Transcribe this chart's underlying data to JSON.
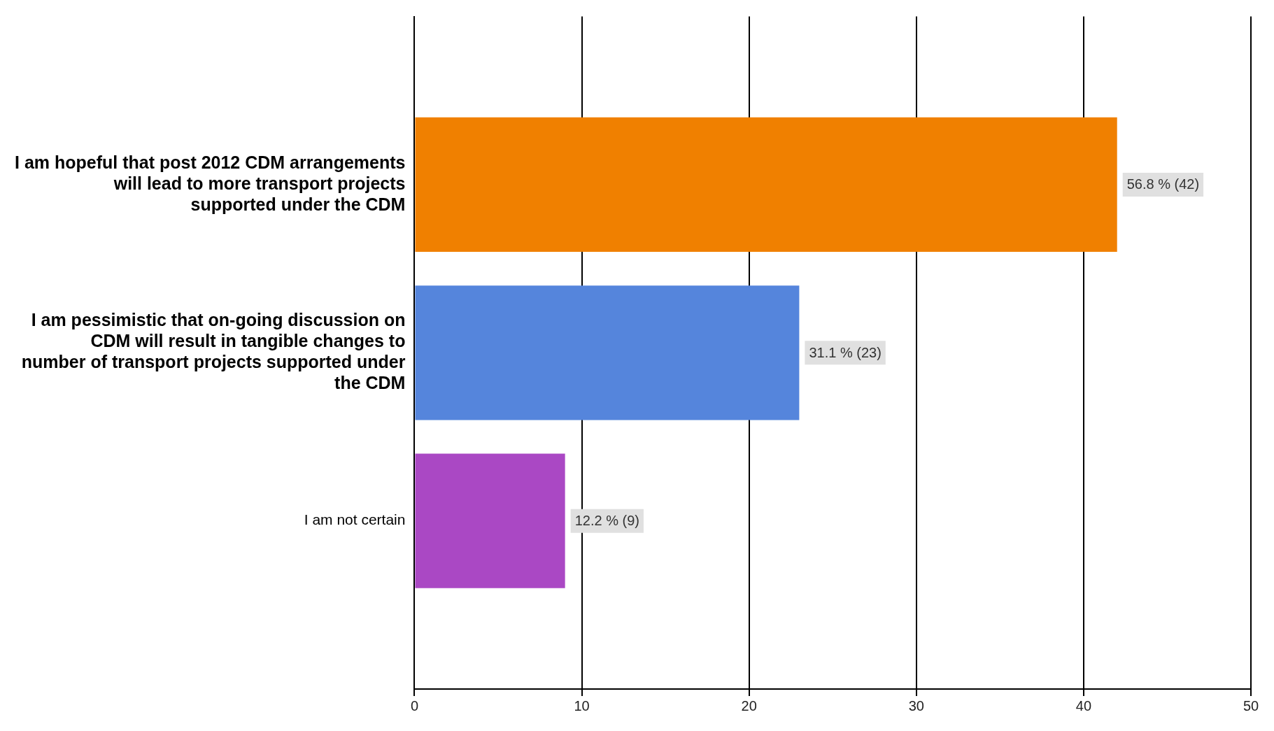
{
  "chart_data": {
    "type": "bar",
    "orientation": "horizontal",
    "categories": [
      "I am hopeful that post 2012 CDM arrangements will lead to more transport projects supported under the CDM",
      "I am pessimistic that on-going discussion on CDM will result in tangible changes to number of transport projects supported under the CDM",
      "I am not certain"
    ],
    "values": [
      42,
      23,
      9
    ],
    "colors": [
      "#f08000",
      "#5585dc",
      "#aa48c4"
    ],
    "value_labels": [
      "56.8 % (42)",
      "31.1 % (23)",
      "12.2 % (9)"
    ],
    "xlim": [
      0,
      50
    ],
    "xticks": [
      0,
      10,
      20,
      30,
      40,
      50
    ],
    "grid": "x",
    "legend": false
  }
}
